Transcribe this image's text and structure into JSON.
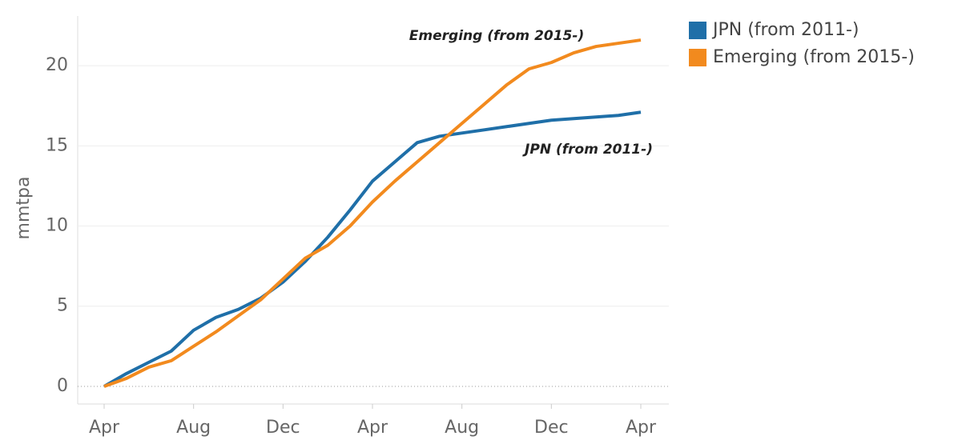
{
  "chart_data": {
    "type": "line",
    "y_label": "mmtpa",
    "categories": [
      "Apr",
      null,
      null,
      null,
      "Aug",
      null,
      null,
      null,
      "Dec",
      null,
      null,
      null,
      "Apr",
      null,
      null,
      null,
      "Aug",
      null,
      null,
      null,
      "Dec",
      null,
      null,
      null,
      "Apr"
    ],
    "series": [
      {
        "name": "JPN (from 2011-)",
        "color": "#1f6fa8",
        "values": [
          0,
          0.8,
          1.5,
          2.2,
          3.5,
          4.3,
          4.8,
          5.5,
          6.5,
          7.8,
          9.3,
          11,
          12.8,
          14,
          15.2,
          15.6,
          15.8,
          16,
          16.2,
          16.4,
          16.6,
          16.7,
          16.8,
          16.9,
          17.1
        ]
      },
      {
        "name": "Emerging (from 2015-)",
        "color": "#f28a1e",
        "values": [
          0,
          0.5,
          1.2,
          1.6,
          2.5,
          3.4,
          4.4,
          5.4,
          6.7,
          8,
          8.8,
          10,
          11.5,
          12.8,
          14,
          15.2,
          16.4,
          17.6,
          18.8,
          19.8,
          20.2,
          20.8,
          21.2,
          21.4,
          21.6
        ]
      }
    ],
    "annotations": [
      "Emerging (from 2015-)",
      "JPN (from 2011-)"
    ],
    "ylim": [
      -1.1,
      23.1
    ],
    "yticks": [
      0,
      5,
      10,
      15,
      20
    ],
    "grid": true,
    "legend": "top-right"
  }
}
